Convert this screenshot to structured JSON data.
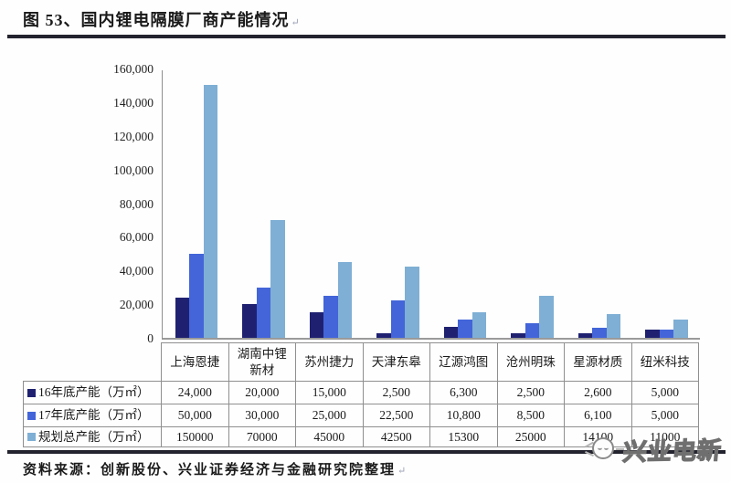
{
  "figure": {
    "title": "图 53、国内锂电隔膜厂商产能情况",
    "paragraph_mark": "↵"
  },
  "chart_data": {
    "type": "bar",
    "title": "国内锂电隔膜厂商产能情况",
    "categories": [
      "上海恩捷",
      "湖南中锂新材",
      "苏州捷力",
      "天津东皋",
      "辽源鸿图",
      "沧州明珠",
      "星源材质",
      "纽米科技"
    ],
    "categories_display": [
      "上海恩捷",
      "湖南中锂\n新材",
      "苏州捷力",
      "天津东皋",
      "辽源鸿图",
      "沧州明珠",
      "星源材质",
      "纽米科技"
    ],
    "series": [
      {
        "name": "16年底产能（万㎡）",
        "color": "#1f2170",
        "values": [
          24000,
          20000,
          15000,
          2500,
          6300,
          2500,
          2600,
          5000
        ],
        "display": [
          "24,000",
          "20,000",
          "15,000",
          "2,500",
          "6,300",
          "2,500",
          "2,600",
          "5,000"
        ]
      },
      {
        "name": "17年底产能（万㎡）",
        "color": "#4365d9",
        "values": [
          50000,
          30000,
          25000,
          22500,
          10800,
          8500,
          6100,
          5000
        ],
        "display": [
          "50,000",
          "30,000",
          "25,000",
          "22,500",
          "10,800",
          "8,500",
          "6,100",
          "5,000"
        ]
      },
      {
        "name": "规划总产能（万㎡）",
        "color": "#7fafd4",
        "values": [
          150000,
          70000,
          45000,
          42500,
          15300,
          25000,
          14100,
          11000
        ],
        "display": [
          "150000",
          "70000",
          "45000",
          "42500",
          "15300",
          "25000",
          "14100",
          "11000"
        ]
      }
    ],
    "xlabel": "",
    "ylabel": "",
    "ylim": [
      0,
      160000
    ],
    "ytick_step": 20000,
    "ytick_labels": [
      "0",
      "20,000",
      "40,000",
      "60,000",
      "80,000",
      "100,000",
      "120,000",
      "140,000",
      "160,000"
    ],
    "grid": false,
    "legend_position": "table-left"
  },
  "footer": {
    "source": "资料来源：创新股份、兴业证券经济与金融研究院整理",
    "paragraph_mark": "↵"
  },
  "watermark": {
    "text": "兴业电新"
  }
}
